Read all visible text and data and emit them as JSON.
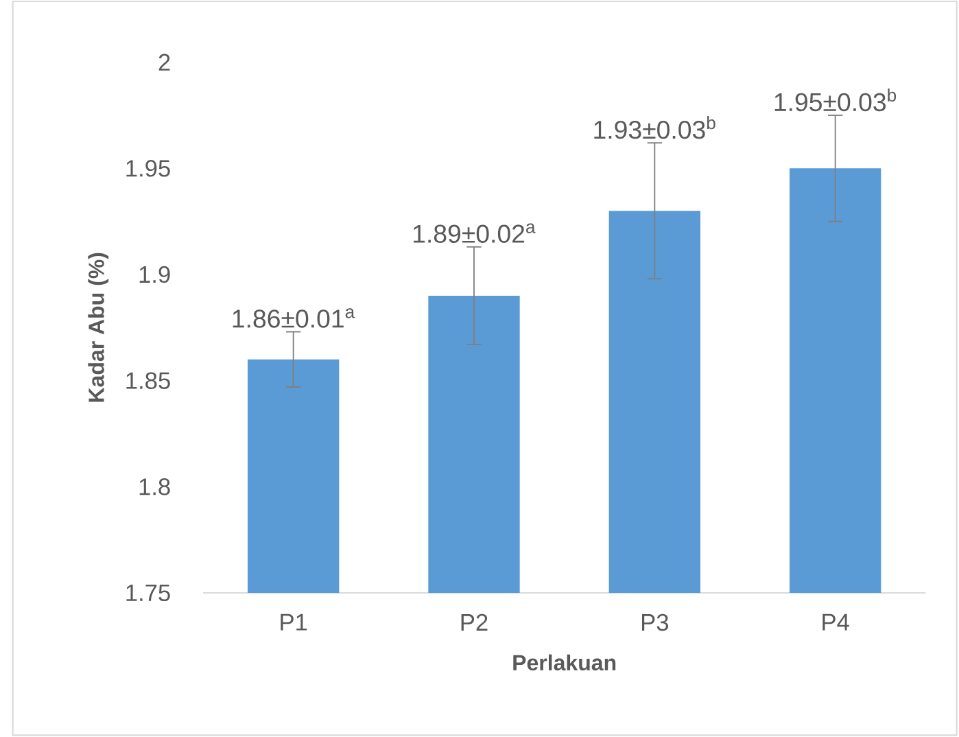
{
  "chart_data": {
    "type": "bar",
    "categories": [
      "P1",
      "P2",
      "P3",
      "P4"
    ],
    "values": [
      1.86,
      1.89,
      1.93,
      1.95
    ],
    "errors": [
      0.013,
      0.023,
      0.032,
      0.025
    ],
    "value_labels": [
      "1.86±0.01$^{a}$",
      "1.89±0.02$^{a}$",
      "1.93±0.03$^{b}$",
      "1.95±0.03$^{b}$"
    ],
    "color": "#5b9bd5",
    "xlabel": "Perlakuan",
    "ylabel": "Kadar Abu (%)",
    "ylim": [
      1.75,
      2
    ],
    "yticks": [
      1.75,
      1.8,
      1.85,
      1.9,
      1.95,
      2
    ]
  }
}
